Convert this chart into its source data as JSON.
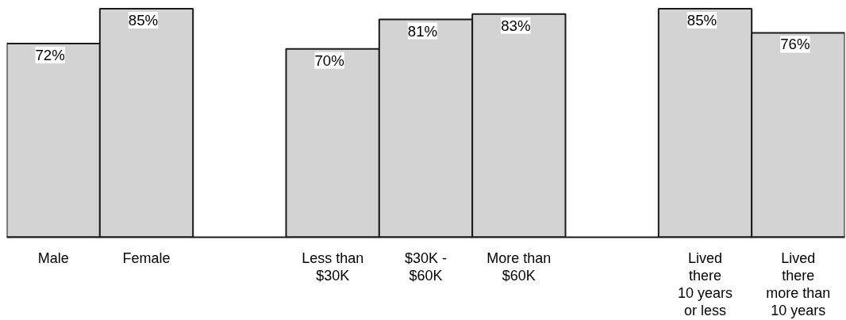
{
  "chart_data": {
    "type": "bar",
    "categories": [
      "Male",
      "Female",
      null,
      "Less than\n$30K",
      "$30K -\n$60K",
      "More than\n$60K",
      null,
      "Lived\nthere\n10 years\nor less",
      "Lived\nthere\nmore than\n10 years"
    ],
    "values": [
      72,
      85,
      null,
      70,
      81,
      83,
      null,
      85,
      76
    ],
    "value_labels": [
      "72%",
      "85%",
      null,
      "70%",
      "81%",
      "83%",
      null,
      "85%",
      "76%"
    ],
    "color": "#d3d3d3",
    "grid": false
  }
}
